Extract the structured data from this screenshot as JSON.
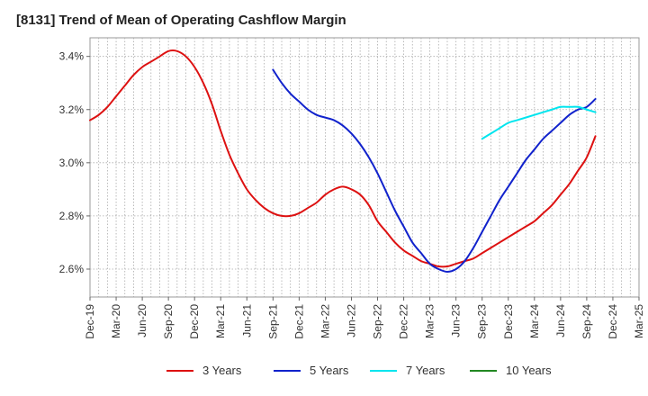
{
  "chart_data": {
    "type": "line",
    "title": "[8131]  Trend of Mean of Operating Cashflow Margin",
    "xlabel": "",
    "ylabel": "",
    "x_ticks": [
      "Dec-19",
      "Mar-20",
      "Jun-20",
      "Sep-20",
      "Dec-20",
      "Mar-21",
      "Jun-21",
      "Sep-21",
      "Dec-21",
      "Mar-22",
      "Jun-22",
      "Sep-22",
      "Dec-22",
      "Mar-23",
      "Jun-23",
      "Sep-23",
      "Dec-23",
      "Mar-24",
      "Jun-24",
      "Sep-24",
      "Dec-24",
      "Mar-25"
    ],
    "y_ticks": [
      "2.6%",
      "2.8%",
      "3.0%",
      "3.2%",
      "3.4%"
    ],
    "y_tick_values": [
      2.6,
      2.8,
      3.0,
      3.2,
      3.4
    ],
    "ylim": [
      2.495,
      3.47
    ],
    "grid": true,
    "legend_position": "bottom",
    "series": [
      {
        "name": "3 Years",
        "color": "#dd1111",
        "points": [
          [
            "Dec-19",
            3.16
          ],
          [
            "Jan-20",
            3.18
          ],
          [
            "Feb-20",
            3.21
          ],
          [
            "Mar-20",
            3.25
          ],
          [
            "Apr-20",
            3.29
          ],
          [
            "May-20",
            3.33
          ],
          [
            "Jun-20",
            3.36
          ],
          [
            "Jul-20",
            3.38
          ],
          [
            "Aug-20",
            3.4
          ],
          [
            "Sep-20",
            3.42
          ],
          [
            "Oct-20",
            3.42
          ],
          [
            "Nov-20",
            3.4
          ],
          [
            "Dec-20",
            3.36
          ],
          [
            "Jan-21",
            3.3
          ],
          [
            "Feb-21",
            3.22
          ],
          [
            "Mar-21",
            3.12
          ],
          [
            "Apr-21",
            3.03
          ],
          [
            "May-21",
            2.96
          ],
          [
            "Jun-21",
            2.9
          ],
          [
            "Jul-21",
            2.86
          ],
          [
            "Aug-21",
            2.83
          ],
          [
            "Sep-21",
            2.81
          ],
          [
            "Oct-21",
            2.8
          ],
          [
            "Nov-21",
            2.8
          ],
          [
            "Dec-21",
            2.81
          ],
          [
            "Jan-22",
            2.83
          ],
          [
            "Feb-22",
            2.85
          ],
          [
            "Mar-22",
            2.88
          ],
          [
            "Apr-22",
            2.9
          ],
          [
            "May-22",
            2.91
          ],
          [
            "Jun-22",
            2.9
          ],
          [
            "Jul-22",
            2.88
          ],
          [
            "Aug-22",
            2.84
          ],
          [
            "Sep-22",
            2.78
          ],
          [
            "Oct-22",
            2.74
          ],
          [
            "Nov-22",
            2.7
          ],
          [
            "Dec-22",
            2.67
          ],
          [
            "Jan-23",
            2.65
          ],
          [
            "Feb-23",
            2.63
          ],
          [
            "Mar-23",
            2.62
          ],
          [
            "Apr-23",
            2.61
          ],
          [
            "May-23",
            2.61
          ],
          [
            "Jun-23",
            2.62
          ],
          [
            "Jul-23",
            2.63
          ],
          [
            "Aug-23",
            2.64
          ],
          [
            "Sep-23",
            2.66
          ],
          [
            "Oct-23",
            2.68
          ],
          [
            "Nov-23",
            2.7
          ],
          [
            "Dec-23",
            2.72
          ],
          [
            "Jan-24",
            2.74
          ],
          [
            "Feb-24",
            2.76
          ],
          [
            "Mar-24",
            2.78
          ],
          [
            "Apr-24",
            2.81
          ],
          [
            "May-24",
            2.84
          ],
          [
            "Jun-24",
            2.88
          ],
          [
            "Jul-24",
            2.92
          ],
          [
            "Aug-24",
            2.97
          ],
          [
            "Sep-24",
            3.02
          ],
          [
            "Oct-24",
            3.1
          ]
        ]
      },
      {
        "name": "5 Years",
        "color": "#1122cc",
        "points": [
          [
            "Sep-21",
            3.35
          ],
          [
            "Oct-21",
            3.3
          ],
          [
            "Nov-21",
            3.26
          ],
          [
            "Dec-21",
            3.23
          ],
          [
            "Jan-22",
            3.2
          ],
          [
            "Feb-22",
            3.18
          ],
          [
            "Mar-22",
            3.17
          ],
          [
            "Apr-22",
            3.16
          ],
          [
            "May-22",
            3.14
          ],
          [
            "Jun-22",
            3.11
          ],
          [
            "Jul-22",
            3.07
          ],
          [
            "Aug-22",
            3.02
          ],
          [
            "Sep-22",
            2.96
          ],
          [
            "Oct-22",
            2.89
          ],
          [
            "Nov-22",
            2.82
          ],
          [
            "Dec-22",
            2.76
          ],
          [
            "Jan-23",
            2.7
          ],
          [
            "Feb-23",
            2.66
          ],
          [
            "Mar-23",
            2.62
          ],
          [
            "Apr-23",
            2.6
          ],
          [
            "May-23",
            2.59
          ],
          [
            "Jun-23",
            2.6
          ],
          [
            "Jul-23",
            2.63
          ],
          [
            "Aug-23",
            2.68
          ],
          [
            "Sep-23",
            2.74
          ],
          [
            "Oct-23",
            2.8
          ],
          [
            "Nov-23",
            2.86
          ],
          [
            "Dec-23",
            2.91
          ],
          [
            "Jan-24",
            2.96
          ],
          [
            "Feb-24",
            3.01
          ],
          [
            "Mar-24",
            3.05
          ],
          [
            "Apr-24",
            3.09
          ],
          [
            "May-24",
            3.12
          ],
          [
            "Jun-24",
            3.15
          ],
          [
            "Jul-24",
            3.18
          ],
          [
            "Aug-24",
            3.2
          ],
          [
            "Sep-24",
            3.21
          ],
          [
            "Oct-24",
            3.24
          ]
        ]
      },
      {
        "name": "7 Years",
        "color": "#00e5ee",
        "points": [
          [
            "Sep-23",
            3.09
          ],
          [
            "Oct-23",
            3.11
          ],
          [
            "Nov-23",
            3.13
          ],
          [
            "Dec-23",
            3.15
          ],
          [
            "Jan-24",
            3.16
          ],
          [
            "Feb-24",
            3.17
          ],
          [
            "Mar-24",
            3.18
          ],
          [
            "Apr-24",
            3.19
          ],
          [
            "May-24",
            3.2
          ],
          [
            "Jun-24",
            3.21
          ],
          [
            "Jul-24",
            3.21
          ],
          [
            "Aug-24",
            3.21
          ],
          [
            "Sep-24",
            3.2
          ],
          [
            "Oct-24",
            3.19
          ]
        ]
      },
      {
        "name": "10 Years",
        "color": "#228822",
        "points": []
      }
    ]
  }
}
